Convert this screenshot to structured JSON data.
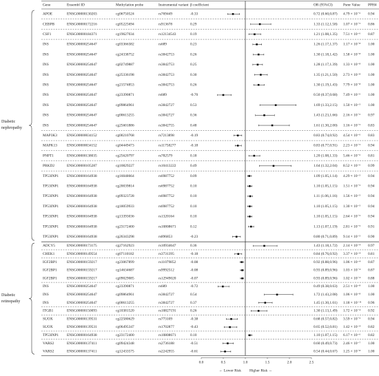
{
  "columns": {
    "gene": "Gene",
    "ensembl": "Ensembl ID",
    "probe": "Methylation probe",
    "variant": "Instrumental variant",
    "beta": "β coefficient",
    "or_ci": "OR (95%CI)",
    "psmr": "Psmr Value",
    "pph4": "PPH4"
  },
  "groups": [
    {
      "label": "Diabetic nephropathy",
      "rows": [
        {
          "gene": "APOE",
          "ensembl": "ENSG00000130203",
          "probe": "cg06750524",
          "variant": "rs769449",
          "beta": "-0.33",
          "or_ci": "0.72 (0.60,0.87)",
          "or": 0.72,
          "lo": 0.6,
          "hi": 0.87,
          "psmr": "4.79 × 10⁻⁶",
          "pph4": "0.94"
        },
        {
          "gene": "CEBPB",
          "ensembl": "ENSG00000172216",
          "probe": "cg05225694",
          "variant": "rs913678",
          "beta": "0.29",
          "or_ci": "1.33 (1.12,1.58)",
          "or": 1.33,
          "lo": 1.12,
          "hi": 1.58,
          "psmr": "1.07 × 10⁻⁵",
          "pph4": "0.86"
        },
        {
          "gene": "CSF1",
          "ensembl": "ENSG00000184371",
          "probe": "cg19627034",
          "variant": "rs12134543",
          "beta": "0.19",
          "or_ci": "1.21 (1.08,1.35)",
          "or": 1.21,
          "lo": 1.08,
          "hi": 1.35,
          "psmr": "7.51 × 10⁻⁶",
          "pph4": "0.87"
        },
        {
          "gene": "INS",
          "ensembl": "ENSG00000254647",
          "probe": "cg03366382",
          "variant": "rs689",
          "beta": "0.23",
          "or_ci": "1.26 (1.17,1.37)",
          "or": 1.26,
          "lo": 1.17,
          "hi": 1.37,
          "psmr": "1.17 × 10⁻⁸",
          "pph4": "1.00"
        },
        {
          "gene": "INS",
          "ensembl": "ENSG00000254647",
          "probe": "cg24338752",
          "variant": "rs3842753",
          "beta": "0.26",
          "or_ci": "1.30 (1.18,1.42)",
          "or": 1.3,
          "lo": 1.18,
          "hi": 1.42,
          "psmr": "1.58 × 10⁻⁸",
          "pph4": "1.00"
        },
        {
          "gene": "INS",
          "ensembl": "ENSG00000254647",
          "probe": "cg02749887",
          "variant": "rs3842753",
          "beta": "0.25",
          "or_ci": "1.28 (1.17,1.39)",
          "or": 1.28,
          "lo": 1.17,
          "hi": 1.39,
          "psmr": "1.33 × 10⁻⁸",
          "pph4": "1.00"
        },
        {
          "gene": "INS",
          "ensembl": "ENSG00000254647",
          "probe": "cg25336198",
          "variant": "rs3842753",
          "beta": "0.30",
          "or_ci": "1.35 (1.21,1.50)",
          "or": 1.35,
          "lo": 1.21,
          "hi": 1.5,
          "psmr": "2.73 × 10⁻⁸",
          "pph4": "1.00"
        },
        {
          "gene": "INS",
          "ensembl": "ENSG00000254647",
          "probe": "cg21574853",
          "variant": "rs3842753",
          "beta": "0.26",
          "or_ci": "1.30 (1.19,1.43)",
          "or": 1.3,
          "lo": 1.19,
          "hi": 1.43,
          "psmr": "7.79 × 10⁻⁸",
          "pph4": "1.00"
        },
        {
          "gene": "INS",
          "ensembl": "ENSG00000254647",
          "probe": "cg23390871",
          "variant": "rs689",
          "beta": "-0.70",
          "or_ci": "0.50 (0.37,0.68)",
          "or": 0.5,
          "lo": 0.37,
          "hi": 0.68,
          "psmr": "7.49 × 10⁻⁶",
          "pph4": "1.00"
        },
        {
          "gene": "INS",
          "ensembl": "ENSG00000254647",
          "probe": "cg09864961",
          "variant": "rs3842727",
          "beta": "0.53",
          "or_ci": "1.69 (1.33,2.15)",
          "or": 1.69,
          "lo": 1.33,
          "hi": 2.15,
          "psmr": "1.50 × 10⁻⁵",
          "pph4": "1.00"
        },
        {
          "gene": "INS",
          "ensembl": "ENSG00000254647",
          "probe": "cg00613255",
          "variant": "rs3842727",
          "beta": "0.36",
          "or_ci": "1.43 (1.23,1.66)",
          "or": 1.43,
          "lo": 1.23,
          "hi": 1.66,
          "psmr": "2.16 × 10⁻⁶",
          "pph4": "0.97"
        },
        {
          "gene": "INS",
          "ensembl": "ENSG00000254647",
          "probe": "cg25601886",
          "variant": "rs3842755",
          "beta": "0.48",
          "or_ci": "1.61 (1.30,2.00)",
          "or": 1.61,
          "lo": 1.3,
          "hi": 2.0,
          "psmr": "1.16 × 10⁻⁵",
          "pph4": "0.83"
        },
        {
          "gene": "MAP3K3",
          "ensembl": "ENSG00000034152",
          "probe": "cg00210768",
          "variant": "rs7213898",
          "beta": "-0.19",
          "or_ci": "0.83 (0.74,0.92)",
          "or": 0.83,
          "lo": 0.74,
          "hi": 0.92,
          "psmr": "4.54 × 10⁻⁶",
          "pph4": "0.83"
        },
        {
          "gene": "MAPK13",
          "ensembl": "ENSG00000034152",
          "probe": "cg04449473",
          "variant": "rs11758277",
          "beta": "-0.18",
          "or_ci": "0.83 (0.77,0.91)",
          "or": 0.83,
          "lo": 0.77,
          "hi": 0.91,
          "psmr": "2.23 × 10⁻⁵",
          "pph4": "0.94"
        },
        {
          "gene": "PNPT1",
          "ensembl": "ENSG00000138035",
          "probe": "cg25620797",
          "variant": "rs782579",
          "beta": "0.18",
          "or_ci": "1.20 (1.08,1.33)",
          "or": 1.2,
          "lo": 1.08,
          "hi": 1.33,
          "psmr": "5.46 × 10⁻⁶",
          "pph4": "0.81"
        },
        {
          "gene": "PRKD2",
          "ensembl": "ENSG00000105287",
          "probe": "cg10829227",
          "variant": "rs10413222",
          "beta": "0.49",
          "or_ci": "1.64 (1.32,2.04)",
          "or": 1.64,
          "lo": 1.32,
          "hi": 2.04,
          "psmr": "8.52 × 10⁻⁶",
          "pph4": "0.99"
        },
        {
          "gene": "TP53INP1",
          "ensembl": "ENSG00000164938",
          "probe": "cg16048664",
          "variant": "rs6987752",
          "beta": "0.09",
          "or_ci": "1.09 (1.05,1.14)",
          "or": 1.09,
          "lo": 1.05,
          "hi": 1.14,
          "psmr": "4.29 × 10⁻⁵",
          "pph4": "0.94"
        },
        {
          "gene": "TP53INP1",
          "ensembl": "ENSG00000164938",
          "probe": "cg20039814",
          "variant": "rs6987752",
          "beta": "0.10",
          "or_ci": "1.10 (1.05,1.15)",
          "or": 1.1,
          "lo": 1.05,
          "hi": 1.15,
          "psmr": "1.51 × 10⁻⁵",
          "pph4": "0.94"
        },
        {
          "gene": "TP53INP1",
          "ensembl": "ENSG00000164938",
          "probe": "cg09323728",
          "variant": "rs6987752",
          "beta": "0.10",
          "or_ci": "1.11 (1.06,1.16)",
          "or": 1.11,
          "lo": 1.06,
          "hi": 1.16,
          "psmr": "1.56 × 10⁻⁵",
          "pph4": "0.94"
        },
        {
          "gene": "TP53INP1",
          "ensembl": "ENSG00000164938",
          "probe": "cg18059933",
          "variant": "rs6987752",
          "beta": "0.10",
          "or_ci": "1.10 (1.05,1.15)",
          "or": 1.1,
          "lo": 1.05,
          "hi": 1.15,
          "psmr": "1.30 × 10⁻⁵",
          "pph4": "0.94"
        },
        {
          "gene": "TP53INP1",
          "ensembl": "ENSG00000164938",
          "probe": "cg13393036",
          "variant": "rs1320164",
          "beta": "0.10",
          "or_ci": "1.10 (1.05,1.15)",
          "or": 1.1,
          "lo": 1.05,
          "hi": 1.15,
          "psmr": "2.64 × 10⁻⁵",
          "pph4": "0.94"
        },
        {
          "gene": "TP53INP1",
          "ensembl": "ENSG00000164938",
          "probe": "cg23172400",
          "variant": "rs10808671",
          "beta": "0.12",
          "or_ci": "1.13 (1.07,1.19)",
          "or": 1.13,
          "lo": 1.07,
          "hi": 1.19,
          "psmr": "2.81 × 10⁻⁵",
          "pph4": "0.91"
        },
        {
          "gene": "TP53INP1",
          "ensembl": "ENSG00000164938",
          "probe": "cg26343298",
          "variant": "rs896853",
          "beta": "-0.23",
          "or_ci": "0.80 (0.71,0.89)",
          "or": 0.8,
          "lo": 0.71,
          "hi": 0.89,
          "psmr": "9.14 × 10⁻⁵",
          "pph4": "0.90"
        }
      ]
    },
    {
      "label": "Diabetic retinopathy",
      "rows": [
        {
          "gene": "ADCY5",
          "ensembl": "ENSG00000173175",
          "probe": "cg27162923",
          "variant": "rs10934647",
          "beta": "0.36",
          "or_ci": "1.43 (1.18,1.72)",
          "or": 1.43,
          "lo": 1.18,
          "hi": 1.72,
          "psmr": "2.14 × 10⁻⁴",
          "pph4": "0.97"
        },
        {
          "gene": "CHEK1",
          "ensembl": "ENSG00000149554",
          "probe": "cg07110182",
          "variant": "rs3731395",
          "beta": "-0.18",
          "or_ci": "0.84 (0.76,0.92)",
          "or": 0.84,
          "lo": 0.76,
          "hi": 0.92,
          "psmr": "3.37 × 10⁻⁴",
          "pph4": "0.81"
        },
        {
          "gene": "IGF2BP1",
          "ensembl": "ENSG00000159217",
          "probe": "cg23067899",
          "variant": "rs11079852",
          "beta": "-0.08",
          "or_ci": "0.92 (0.88,0.96)",
          "or": 0.92,
          "lo": 0.88,
          "hi": 0.96,
          "psmr": "1.06 × 10⁻⁴",
          "pph4": "0.87"
        },
        {
          "gene": "IGF2BP1",
          "ensembl": "ENSG00000159217",
          "probe": "cg14634687",
          "variant": "rs9992512",
          "beta": "-0.08",
          "or_ci": "0.93 (0.89,0.96)",
          "or": 0.93,
          "lo": 0.89,
          "hi": 0.96,
          "psmr": "1.03 × 10⁻⁴",
          "pph4": "0.87"
        },
        {
          "gene": "IGF2BP1",
          "ensembl": "ENSG00000159217",
          "probe": "cg09029085",
          "variant": "rs12949020",
          "beta": "-0.07",
          "or_ci": "0.93 (0.89,0.96)",
          "or": 0.93,
          "lo": 0.89,
          "hi": 0.96,
          "psmr": "1.02 × 10⁻⁴",
          "pph4": "0.88"
        },
        {
          "gene": "INS",
          "ensembl": "ENSG00000254647",
          "probe": "cg23390871",
          "variant": "rs689",
          "beta": "-0.72",
          "or_ci": "0.49 (0.38,0.63)",
          "or": 0.49,
          "lo": 0.38,
          "hi": 0.63,
          "psmr": "2.51 × 10⁻⁸",
          "pph4": "1.00"
        },
        {
          "gene": "INS",
          "ensembl": "ENSG00000254647",
          "probe": "cg09864961",
          "variant": "rs3842727",
          "beta": "0.54",
          "or_ci": "1.72 (1.43,2.08)",
          "or": 1.72,
          "lo": 1.43,
          "hi": 2.08,
          "psmr": "1.06 × 10⁻⁸",
          "pph4": "1.00"
        },
        {
          "gene": "INS",
          "ensembl": "ENSG00000254647",
          "probe": "cg00613255",
          "variant": "rs3842727",
          "beta": "0.37",
          "or_ci": "1.45 (1.30,1.61)",
          "or": 1.45,
          "lo": 1.3,
          "hi": 1.61,
          "psmr": "1.18 × 10⁻¹¹",
          "pph4": "0.96"
        },
        {
          "gene": "ITGB1",
          "ensembl": "ENSG00000150093",
          "probe": "cg10381520",
          "variant": "rs10827191",
          "beta": "0.26",
          "or_ci": "1.30 (1.13,1.49)",
          "or": 1.3,
          "lo": 1.13,
          "hi": 1.49,
          "psmr": "1.72 × 10⁻⁴",
          "pph4": "0.92"
        },
        {
          "gene": "SUOX",
          "ensembl": "ENSG00000139531",
          "probe": "cg22580629",
          "variant": "rs773109",
          "beta": "-0.38",
          "or_ci": "0.68 (0.57,0.82)",
          "or": 0.68,
          "lo": 0.57,
          "hi": 0.82,
          "psmr": "3.59 × 10⁻⁵",
          "pph4": "0.94"
        },
        {
          "gene": "SUOX",
          "ensembl": "ENSG00000139531",
          "probe": "cg06495347",
          "variant": "rs1702877",
          "beta": "-0.43",
          "or_ci": "0.65 (0.52,0.81)",
          "or": 0.65,
          "lo": 0.52,
          "hi": 0.81,
          "psmr": "1.42 × 10⁻⁴",
          "pph4": "0.82"
        },
        {
          "gene": "TP53INP1",
          "ensembl": "ENSG00000164938",
          "probe": "cg23172400",
          "variant": "rs10808671",
          "beta": "0.10",
          "or_ci": "1.10 (1.07,1.15)",
          "or": 1.1,
          "lo": 1.07,
          "hi": 1.15,
          "psmr": "6.17 × 10⁻⁶",
          "pph4": "0.82"
        },
        {
          "gene": "VARS2",
          "ensembl": "ENSG00000137411",
          "probe": "cg09424348",
          "variant": "rs2736188",
          "beta": "-0.51",
          "or_ci": "0.60 (0.49,0.73)",
          "or": 0.6,
          "lo": 0.49,
          "hi": 0.73,
          "psmr": "2.46 × 10⁻⁷",
          "pph4": "1.00"
        },
        {
          "gene": "VARS2",
          "ensembl": "ENSG00000137411",
          "probe": "cg12433575",
          "variant": "rs2242955",
          "beta": "-0.61",
          "or_ci": "0.54 (0.44,0.67)",
          "or": 0.54,
          "lo": 0.44,
          "hi": 0.67,
          "psmr": "1.25 × 10⁻⁸",
          "pph4": "1.00"
        }
      ]
    }
  ],
  "axis": {
    "xlim": [
      0,
      2.5
    ],
    "xticks": [
      {
        "value": 0,
        "label": "0.0"
      },
      {
        "value": 0.5,
        "label": "0.5"
      },
      {
        "value": 1,
        "label": "1.0"
      },
      {
        "value": 1.5,
        "label": "1.5"
      },
      {
        "value": 2,
        "label": "2.0"
      },
      {
        "value": 2.5,
        "label": "2.5"
      }
    ],
    "reference_line": 1
  },
  "footer": {
    "left": "← Lower Risk",
    "right": "Higher Risk →"
  }
}
